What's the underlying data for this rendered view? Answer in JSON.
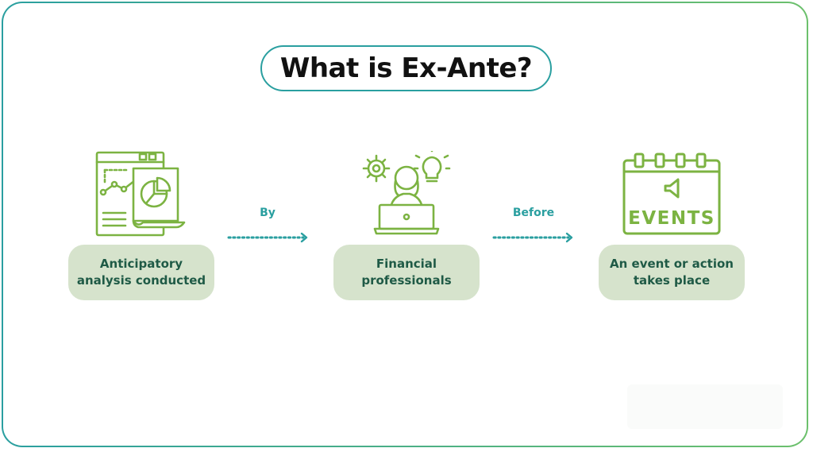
{
  "title": "What is Ex-Ante?",
  "steps": [
    {
      "label": "Anticipatory\nanalysis conducted",
      "icon": "analysis-report-icon"
    },
    {
      "label": "Financial\nprofessionals",
      "icon": "professional-at-laptop-icon"
    },
    {
      "label": "An event or action\ntakes place",
      "icon": "events-calendar-icon"
    }
  ],
  "connectors": [
    {
      "label": "By"
    },
    {
      "label": "Before"
    }
  ],
  "events_icon_text": "EVENTS",
  "colors": {
    "icon_green": "#7cb342",
    "teal": "#2a9fa0",
    "box_fill": "#d6e3cc",
    "box_text": "#1f5a46"
  }
}
